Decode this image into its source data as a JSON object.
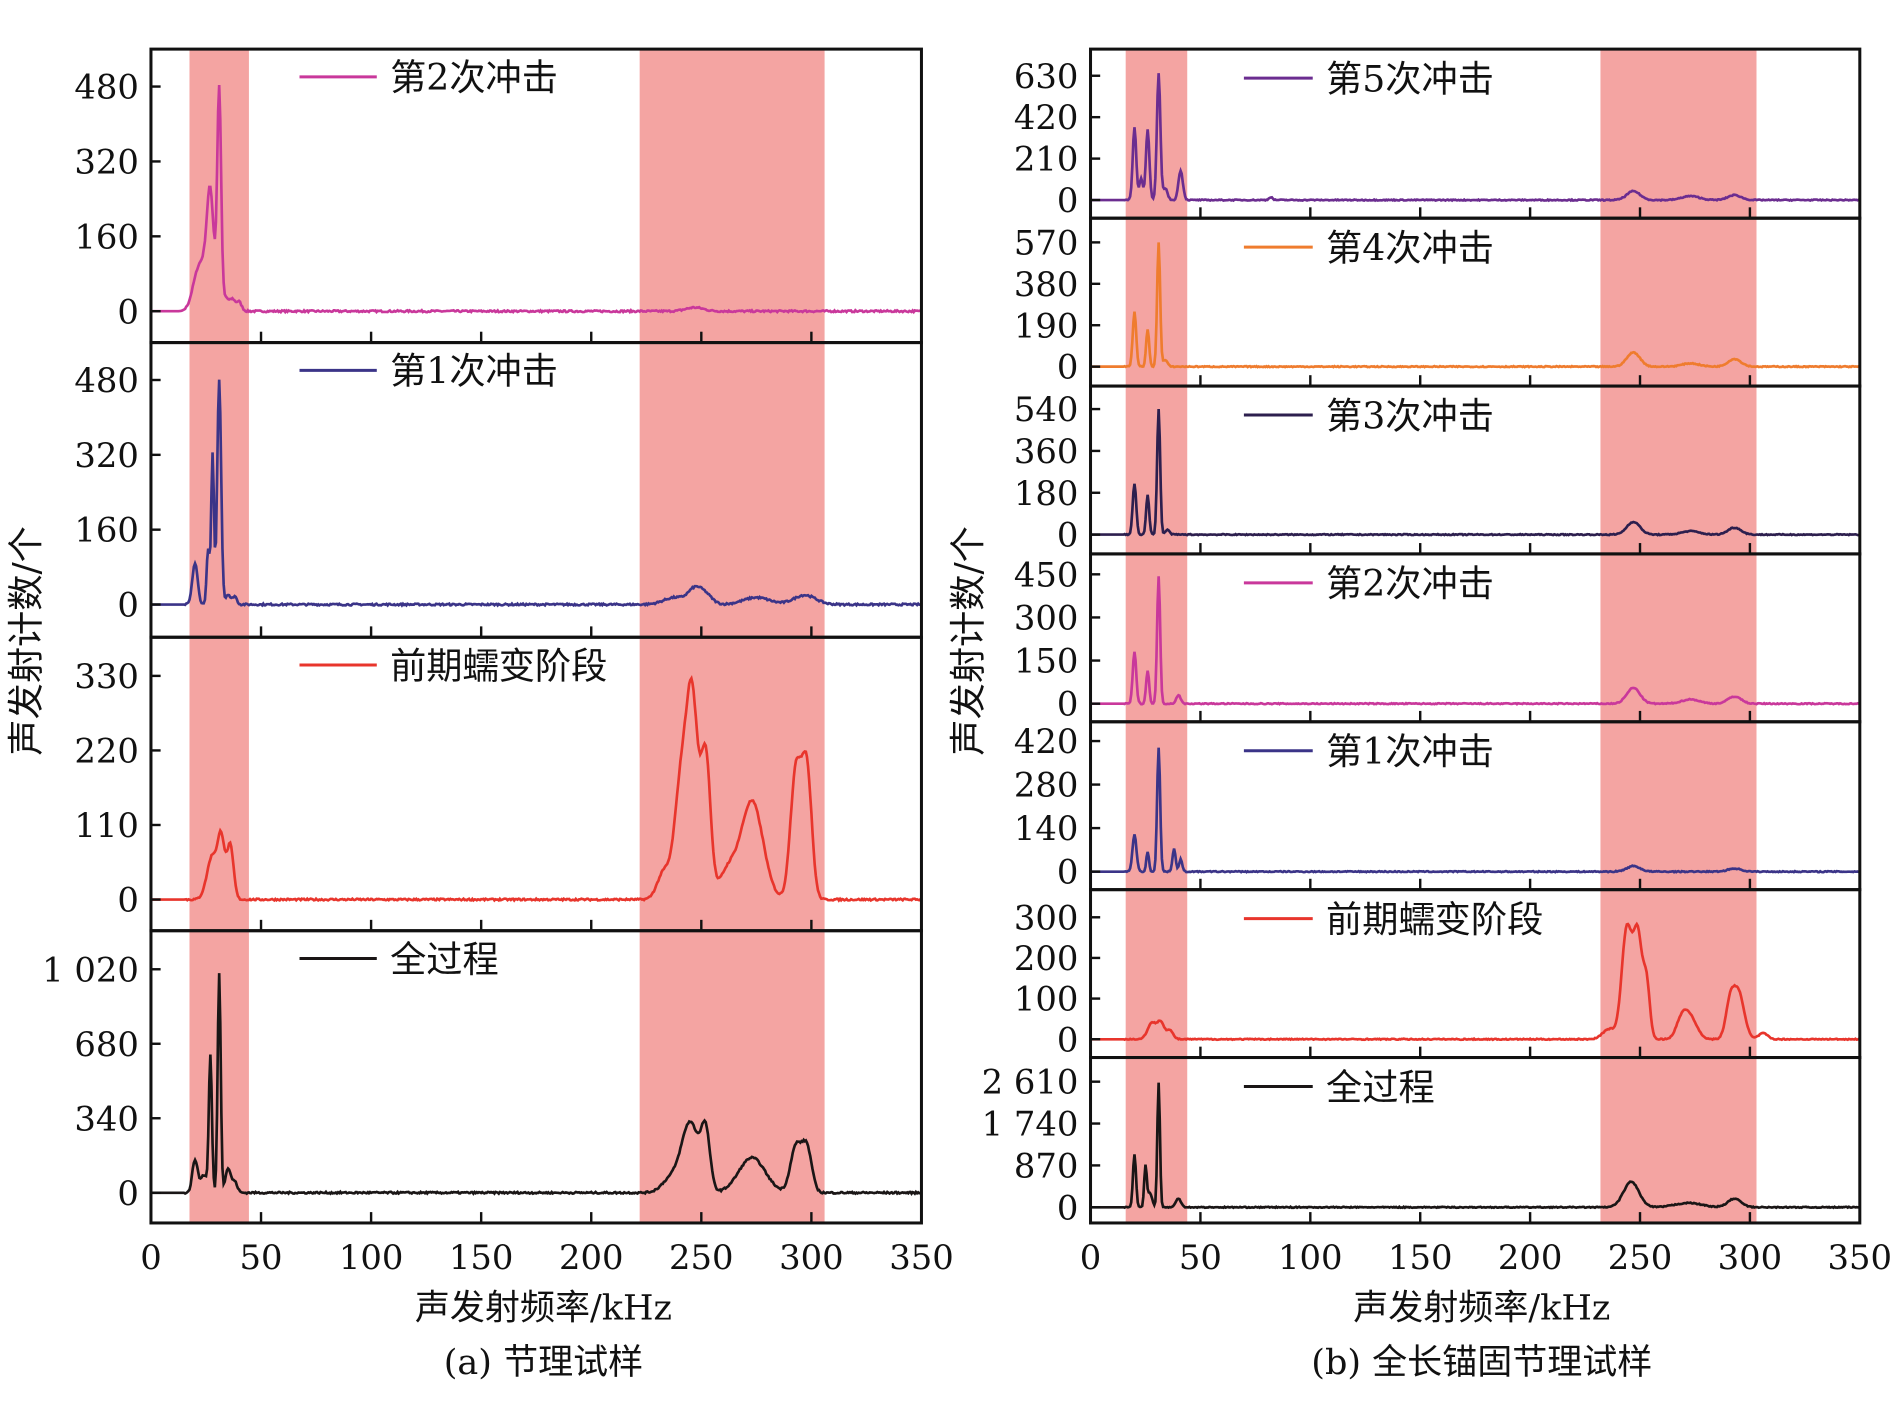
{
  "chart_data": [
    {
      "type": "line",
      "caption": "(a) 节理试样",
      "xlabel": "声发射频率/kHz",
      "ylabel": "声发射计数/个",
      "xlim": [
        0,
        350
      ],
      "xticks": [
        "0",
        "50",
        "100",
        "150",
        "200",
        "250",
        "300",
        "350"
      ],
      "shaded_ranges_khz": [
        [
          17.5,
          44.5
        ],
        [
          222,
          306
        ]
      ],
      "shade_color": "#f4a4a2",
      "subplots": [
        {
          "legend": "第2次冲击",
          "color": "#c9389b",
          "ylim": [
            -67,
            560
          ],
          "yticks": [
            0,
            160,
            320,
            480
          ],
          "ytick_labels": [
            "0",
            "160",
            "320",
            "480"
          ],
          "peaks": [
            [
              21,
              60,
              2.5
            ],
            [
              24,
              62,
              2.5
            ],
            [
              27,
              232,
              1.6
            ],
            [
              31,
              470,
              0.9
            ],
            [
              34,
              28,
              1.2
            ],
            [
              37,
              25,
              1.2
            ],
            [
              40,
              20,
              1.2
            ],
            [
              247,
              8,
              4
            ]
          ]
        },
        {
          "legend": "第1次冲击",
          "color": "#3b3488",
          "ylim": [
            -70,
            560
          ],
          "yticks": [
            0,
            160,
            320,
            480
          ],
          "ytick_labels": [
            "0",
            "160",
            "320",
            "480"
          ],
          "peaks": [
            [
              20,
              88,
              1.2
            ],
            [
              26,
              120,
              0.7
            ],
            [
              28,
              320,
              0.6
            ],
            [
              31,
              480,
              0.9
            ],
            [
              35,
              22,
              1
            ],
            [
              38,
              18,
              1
            ],
            [
              238,
              15,
              5
            ],
            [
              247,
              30,
              3
            ],
            [
              252,
              20,
              3
            ],
            [
              275,
              15,
              6
            ],
            [
              297,
              20,
              5
            ]
          ]
        },
        {
          "legend": "前期蠕变阶段",
          "color": "#e8352c",
          "ylim": [
            -46,
            387
          ],
          "yticks": [
            0,
            110,
            220,
            330
          ],
          "ytick_labels": [
            "0",
            "110",
            "220",
            "330"
          ],
          "peaks": [
            [
              28,
              65,
              2.5
            ],
            [
              32,
              80,
              1.5
            ],
            [
              36,
              80,
              1.5
            ],
            [
              233,
              40,
              3
            ],
            [
              241,
              180,
              3
            ],
            [
              246,
              270,
              2.5
            ],
            [
              252,
              210,
              2.2
            ],
            [
              262,
              40,
              4
            ],
            [
              273,
              145,
              5
            ],
            [
              293,
              190,
              2.5
            ],
            [
              298,
              185,
              2.2
            ]
          ]
        },
        {
          "legend": "全过程",
          "color": "#1a1616",
          "ylim": [
            -138,
            1196
          ],
          "yticks": [
            0,
            340,
            680,
            1020
          ],
          "ytick_labels": [
            "0",
            "340",
            "680",
            "1 020"
          ],
          "peaks": [
            [
              20,
              150,
              1.2
            ],
            [
              24,
              80,
              1.5
            ],
            [
              27,
              620,
              0.7
            ],
            [
              31,
              1000,
              0.7
            ],
            [
              35,
              110,
              1.2
            ],
            [
              38,
              50,
              1.2
            ],
            [
              236,
              60,
              4
            ],
            [
              245,
              320,
              4
            ],
            [
              252,
              250,
              2
            ],
            [
              273,
              160,
              6
            ],
            [
              293,
              210,
              2.5
            ],
            [
              298,
              200,
              2.2
            ]
          ]
        }
      ]
    },
    {
      "type": "line",
      "caption": "(b) 全长锚固节理试样",
      "xlabel": "声发射频率/kHz",
      "ylabel": "声发射计数/个",
      "xlim": [
        0,
        350
      ],
      "xticks": [
        "0",
        "50",
        "100",
        "150",
        "200",
        "250",
        "300",
        "350"
      ],
      "shaded_ranges_khz": [
        [
          16,
          44
        ],
        [
          232,
          303
        ]
      ],
      "shade_color": "#f4a4a2",
      "subplots": [
        {
          "legend": "第5次冲击",
          "color": "#6b2d90",
          "ylim": [
            -92,
            765
          ],
          "yticks": [
            0,
            210,
            420,
            630
          ],
          "ytick_labels": [
            "0",
            "210",
            "420",
            "630"
          ],
          "peaks": [
            [
              20,
              370,
              0.8
            ],
            [
              23,
              110,
              0.8
            ],
            [
              26,
              360,
              0.8
            ],
            [
              31,
              640,
              0.8
            ],
            [
              34,
              60,
              1
            ],
            [
              41,
              150,
              1
            ],
            [
              82,
              15,
              0.8
            ],
            [
              247,
              45,
              3
            ],
            [
              273,
              20,
              4
            ],
            [
              293,
              25,
              3
            ]
          ]
        },
        {
          "legend": "第4次冲击",
          "color": "#ef7c2e",
          "ylim": [
            -89,
            681
          ],
          "yticks": [
            0,
            190,
            380,
            570
          ],
          "ytick_labels": [
            "0",
            "190",
            "380",
            "570"
          ],
          "peaks": [
            [
              20,
              250,
              0.8
            ],
            [
              26,
              170,
              0.7
            ],
            [
              31,
              570,
              0.7
            ],
            [
              34,
              30,
              1
            ],
            [
              247,
              65,
              3
            ],
            [
              273,
              15,
              4
            ],
            [
              293,
              35,
              3
            ]
          ]
        },
        {
          "legend": "第3次冲击",
          "color": "#2d1f4e",
          "ylim": [
            -83,
            639
          ],
          "yticks": [
            0,
            180,
            360,
            540
          ],
          "ytick_labels": [
            "0",
            "180",
            "360",
            "540"
          ],
          "peaks": [
            [
              20,
              220,
              0.8
            ],
            [
              26,
              170,
              0.7
            ],
            [
              31,
              540,
              0.7
            ],
            [
              35,
              20,
              1
            ],
            [
              247,
              55,
              3
            ],
            [
              273,
              15,
              4
            ],
            [
              293,
              30,
              3
            ]
          ]
        },
        {
          "legend": "第2次冲击",
          "color": "#c9389b",
          "ylim": [
            -63,
            521
          ],
          "yticks": [
            0,
            150,
            300,
            450
          ],
          "ytick_labels": [
            "0",
            "150",
            "300",
            "450"
          ],
          "peaks": [
            [
              20,
              180,
              0.8
            ],
            [
              26,
              115,
              0.7
            ],
            [
              31,
              445,
              0.7
            ],
            [
              40,
              30,
              1
            ],
            [
              247,
              55,
              3
            ],
            [
              273,
              15,
              4
            ],
            [
              293,
              25,
              3
            ]
          ]
        },
        {
          "legend": "第1次冲击",
          "color": "#3b3488",
          "ylim": [
            -58,
            482
          ],
          "yticks": [
            0,
            140,
            280,
            420
          ],
          "ytick_labels": [
            "0",
            "140",
            "280",
            "420"
          ],
          "peaks": [
            [
              20,
              120,
              0.9
            ],
            [
              26,
              65,
              0.6
            ],
            [
              31,
              400,
              0.7
            ],
            [
              38,
              75,
              0.7
            ],
            [
              41,
              40,
              0.7
            ],
            [
              247,
              18,
              3
            ],
            [
              293,
              10,
              3
            ]
          ]
        },
        {
          "legend": "前期蠕变阶段",
          "color": "#e8352c",
          "ylim": [
            -45,
            368
          ],
          "yticks": [
            0,
            100,
            200,
            300
          ],
          "ytick_labels": [
            "0",
            "100",
            "200",
            "300"
          ],
          "peaks": [
            [
              28,
              40,
              2
            ],
            [
              32,
              40,
              1.5
            ],
            [
              36,
              22,
              1.5
            ],
            [
              236,
              25,
              3
            ],
            [
              244,
              270,
              2.3
            ],
            [
              249,
              250,
              2
            ],
            [
              253,
              130,
              1.5
            ],
            [
              269,
              45,
              2.5
            ],
            [
              273,
              50,
              3
            ],
            [
              291,
              85,
              2
            ],
            [
              295,
              110,
              2.5
            ],
            [
              306,
              15,
              2
            ]
          ]
        },
        {
          "legend": "全过程",
          "color": "#1a1616",
          "ylim": [
            -326,
            3112
          ],
          "yticks": [
            0,
            870,
            1740,
            2610
          ],
          "ytick_labels": [
            "0",
            "870",
            "1 740",
            "2 610"
          ],
          "peaks": [
            [
              20,
              1100,
              0.7
            ],
            [
              25,
              850,
              0.6
            ],
            [
              27,
              300,
              1
            ],
            [
              31,
              2600,
              0.6
            ],
            [
              40,
              180,
              1.2
            ],
            [
              246,
              530,
              3.5
            ],
            [
              272,
              90,
              6
            ],
            [
              293,
              180,
              3
            ]
          ]
        }
      ]
    }
  ]
}
